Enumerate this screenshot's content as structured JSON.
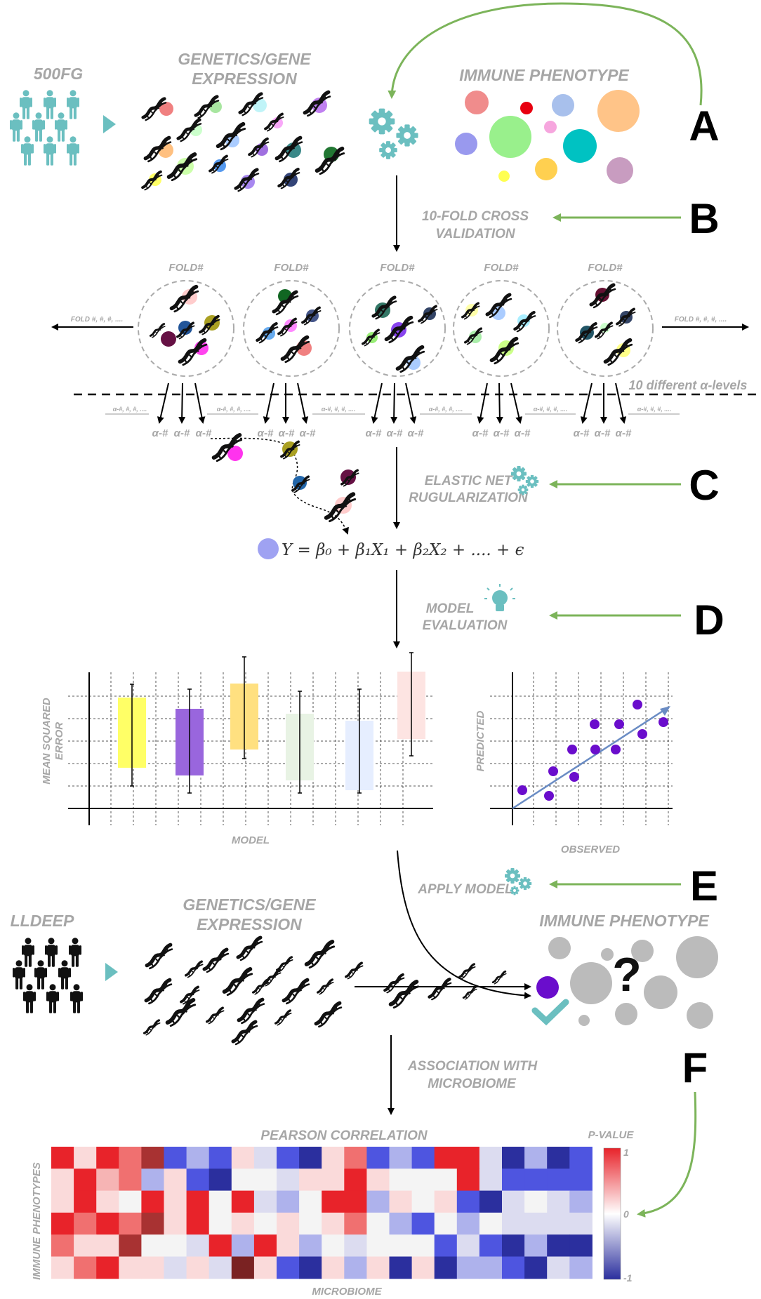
{
  "top": {
    "cohort_label": "500FG",
    "genetics_label_1": "GENETICS/GENE",
    "genetics_label_2": "EXPRESSION",
    "immune_label": "IMMUNE PHENOTYPE"
  },
  "steps": {
    "A": "A",
    "B": "B",
    "C": "C",
    "D": "D",
    "E": "E",
    "F": "F",
    "cv_1": "10-FOLD CROSS",
    "cv_2": "VALIDATION",
    "enet_1": "ELASTIC NET",
    "enet_2": "RUGULARIZATION",
    "eval_1": "MODEL",
    "eval_2": "EVALUATION",
    "apply": "APPLY MODEL",
    "assoc_1": "ASSOCIATION WITH",
    "assoc_2": "MICROBIOME"
  },
  "folds": {
    "fold_label": "FOLD#",
    "left_note": "FOLD #, #, #, ....",
    "right_note": "FOLD #, #, #, ....",
    "alpha_levels_note": "10 different α-levels",
    "alpha_tick": "α-#",
    "alpha_note": "α-#, #, #, ...."
  },
  "equation": "Y = β₀ + β₁X₁ + β₂X₂ + .... + ϵ",
  "mse_plot": {
    "ylabel_1": "MEAN SQUARED",
    "ylabel_2": "ERROR",
    "xlabel": "MODEL",
    "box_colors": [
      "#ffff66",
      "#9966dd",
      "#ffe080",
      "#e8f3e4",
      "#e6eeff",
      "#fde4e2"
    ]
  },
  "scatter_plot": {
    "ylabel": "PREDICTED",
    "xlabel": "OBSERVED",
    "point_color": "#6a0dcc"
  },
  "bottom": {
    "cohort_label": "LLDEEP",
    "genetics_label_1": "GENETICS/GENE",
    "genetics_label_2": "EXPRESSION",
    "immune_label": "IMMUNE PHENOTYPE",
    "question": "?"
  },
  "heatmap": {
    "title": "PEARSON CORRELATION",
    "ylabel": "IMMUNE PHENOTYPES",
    "xlabel": "MICROBIOME",
    "legend_title": "P-VALUE",
    "legend_max": "1",
    "legend_mid": "0",
    "legend_min": "-1"
  },
  "colors": {
    "teal": "#6bbfc0",
    "green_arrow": "#7cb45a",
    "label_grey": "#a6a6a6",
    "heat_red": "#e8232a",
    "heat_blue": "#2b2f9e"
  }
}
